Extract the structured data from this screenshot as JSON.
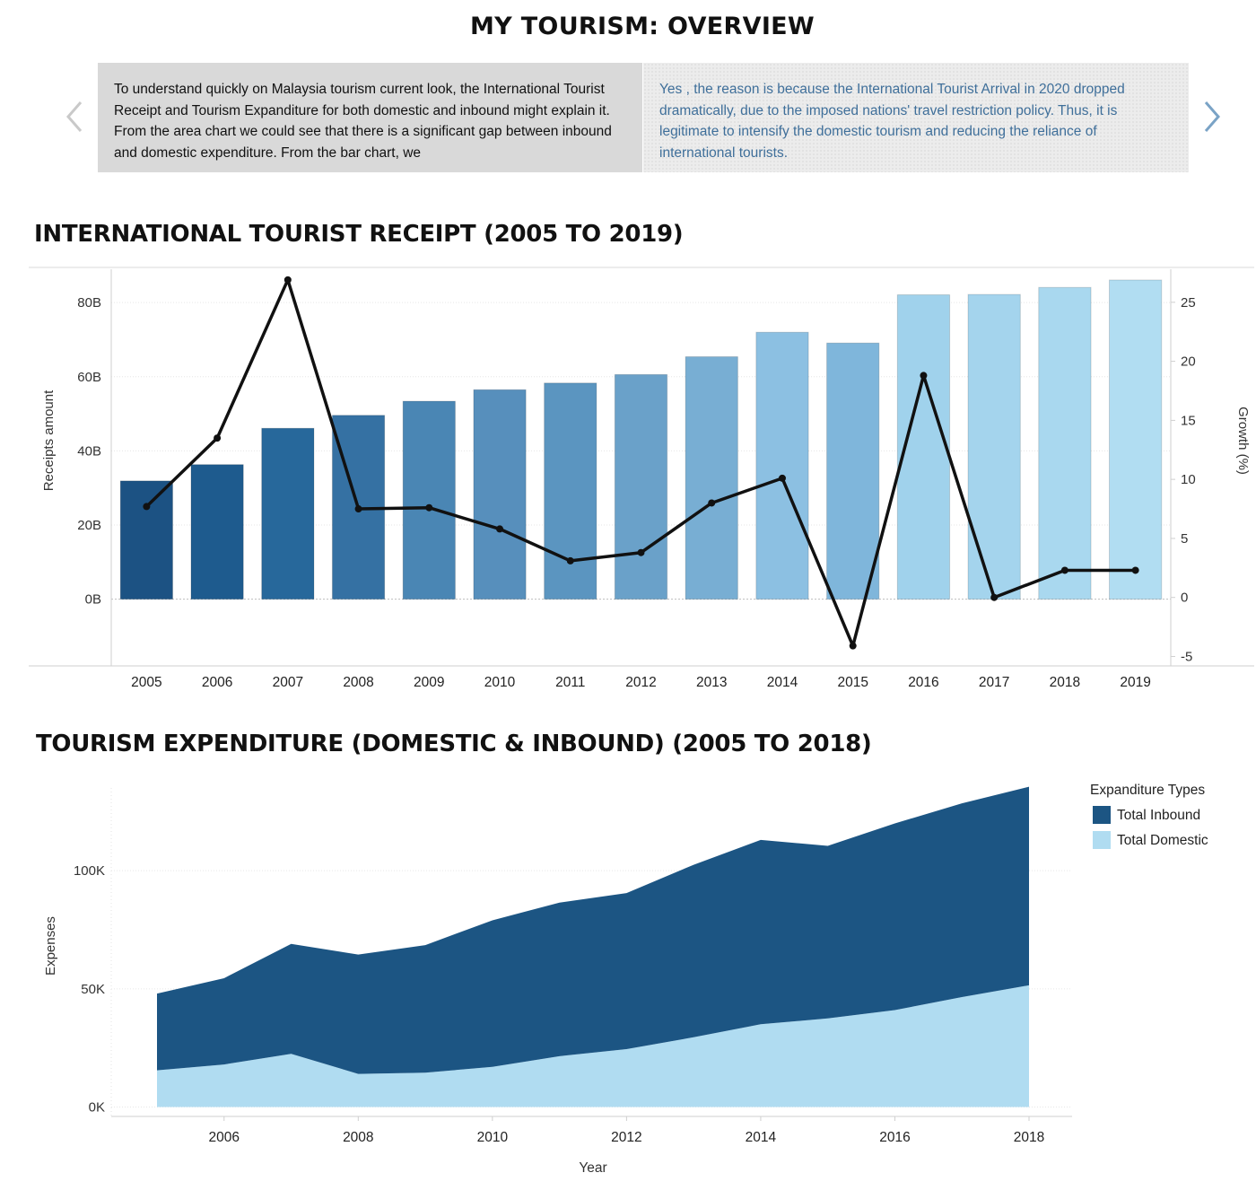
{
  "page_title": "MY TOURISM: OVERVIEW",
  "story": {
    "left_text": "To understand quickly on Malaysia tourism current look, the International Tourist Receipt and Tourism Expanditure for both domestic and inbound might explain it. From the area chart we could see that there is a significant gap between inbound and domestic expenditure. From the bar chart, we",
    "right_text": "Yes , the reason is because the International Tourist Arrival in 2020 dropped dramatically, due to the imposed nations' travel restriction policy. Thus, it is legitimate to intensify the domestic tourism and reducing the reliance of international tourists.",
    "prev_icon": "chevron-left-icon",
    "next_icon": "chevron-right-icon"
  },
  "receipt_section": {
    "title": "INTERNATIONAL TOURIST RECEIPT (2005 TO 2019)"
  },
  "expenditure_section": {
    "title": "TOURISM EXPENDITURE (DOMESTIC & INBOUND) (2005 TO 2018)"
  },
  "chart_data": [
    {
      "type": "bar",
      "title": "INTERNATIONAL TOURIST RECEIPT (2005 TO 2019)",
      "categories": [
        "2005",
        "2006",
        "2007",
        "2008",
        "2009",
        "2010",
        "2011",
        "2012",
        "2013",
        "2014",
        "2015",
        "2016",
        "2017",
        "2018",
        "2019"
      ],
      "ylabel": "Receipts amount",
      "ylabel_right": "Growth (%)",
      "y_ticks": [
        "0B",
        "20B",
        "40B",
        "60B",
        "80B"
      ],
      "y_tick_values": [
        0,
        20,
        40,
        60,
        80
      ],
      "y2_ticks": [
        "-5",
        "0",
        "5",
        "10",
        "15",
        "20",
        "25"
      ],
      "y2_tick_values": [
        -5,
        0,
        5,
        10,
        15,
        20,
        25
      ],
      "ylim": [
        -18,
        89
      ],
      "y2lim": [
        -5.8,
        27.8
      ],
      "series": [
        {
          "values": [
            31.9,
            36.3,
            46.1,
            49.6,
            53.4,
            56.5,
            58.3,
            60.6,
            65.4,
            72.0,
            69.1,
            82.1,
            82.2,
            84.1,
            86.1
          ]
        },
        {
          "type": "line",
          "values": [
            7.7,
            13.5,
            26.9,
            7.5,
            7.6,
            5.8,
            3.1,
            3.8,
            8.0,
            10.1,
            -4.1,
            18.8,
            0.0,
            2.3,
            2.3
          ]
        }
      ],
      "colors": [
        "#1c5283",
        "#1e5b8e",
        "#27689b",
        "#3571a3",
        "#4a86b4",
        "#578fbc",
        "#5b95c0",
        "#6aa1c9",
        "#78aed3",
        "#8cc0e2",
        "#7fb6db",
        "#a0d2ec",
        "#a4d4ed",
        "#a9d8ef",
        "#b1ddf2"
      ],
      "line_color": "#111111",
      "grid": true
    },
    {
      "type": "area",
      "title": "TOURISM EXPENDITURE (DOMESTIC & INBOUND) (2005 TO 2018)",
      "x": [
        2005,
        2006,
        2007,
        2008,
        2009,
        2010,
        2011,
        2012,
        2013,
        2014,
        2015,
        2016,
        2017,
        2018
      ],
      "x_ticks": [
        "2006",
        "2008",
        "2010",
        "2012",
        "2014",
        "2016",
        "2018"
      ],
      "x_tick_values": [
        2006,
        2008,
        2010,
        2012,
        2014,
        2016,
        2018
      ],
      "xlabel": "Year",
      "ylabel": "Expenses",
      "y_ticks": [
        "0K",
        "50K",
        "100K"
      ],
      "y_tick_values": [
        0,
        50,
        100
      ],
      "ylim": [
        -4,
        135
      ],
      "stacked": true,
      "legend_title": "Expanditure Types",
      "legend_position": "top-right",
      "series": [
        {
          "name": "Total Domestic",
          "color": "#b0dcf1",
          "values": [
            15.5,
            18,
            22.5,
            14,
            14.5,
            17,
            21.5,
            24.5,
            29.5,
            35,
            37.5,
            41,
            46.5,
            51.5
          ]
        },
        {
          "name": "Total Inbound",
          "color": "#1c5583",
          "values": [
            32.5,
            36.5,
            46.5,
            50.5,
            54,
            62,
            65,
            66,
            73,
            78,
            73,
            79,
            82,
            84
          ]
        }
      ],
      "grid": true
    }
  ]
}
